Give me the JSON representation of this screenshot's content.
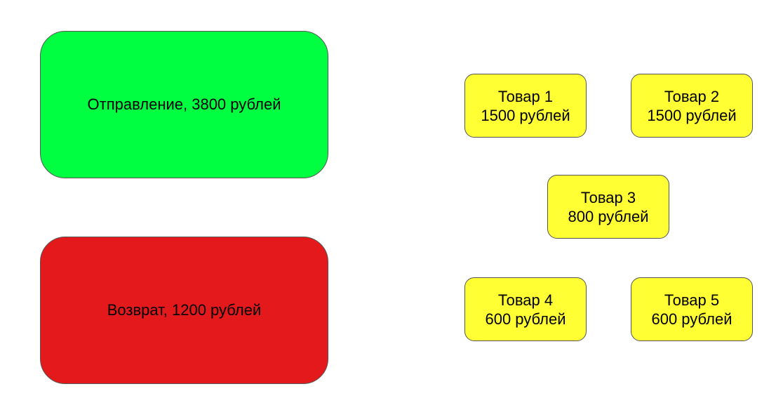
{
  "shipment": {
    "label": "Отправление, 3800 рублей",
    "color": "#00ff40"
  },
  "return": {
    "label": "Возврат, 1200 рублей",
    "color": "#e3191b"
  },
  "items_color": "#ffff33",
  "items": [
    {
      "name": "Товар 1",
      "price": "1500 рублей"
    },
    {
      "name": "Товар 2",
      "price": "1500 рублей"
    },
    {
      "name": "Товар 3",
      "price": "800 рублей"
    },
    {
      "name": "Товар 4",
      "price": "600 рублей"
    },
    {
      "name": "Товар 5",
      "price": "600 рублей"
    }
  ]
}
